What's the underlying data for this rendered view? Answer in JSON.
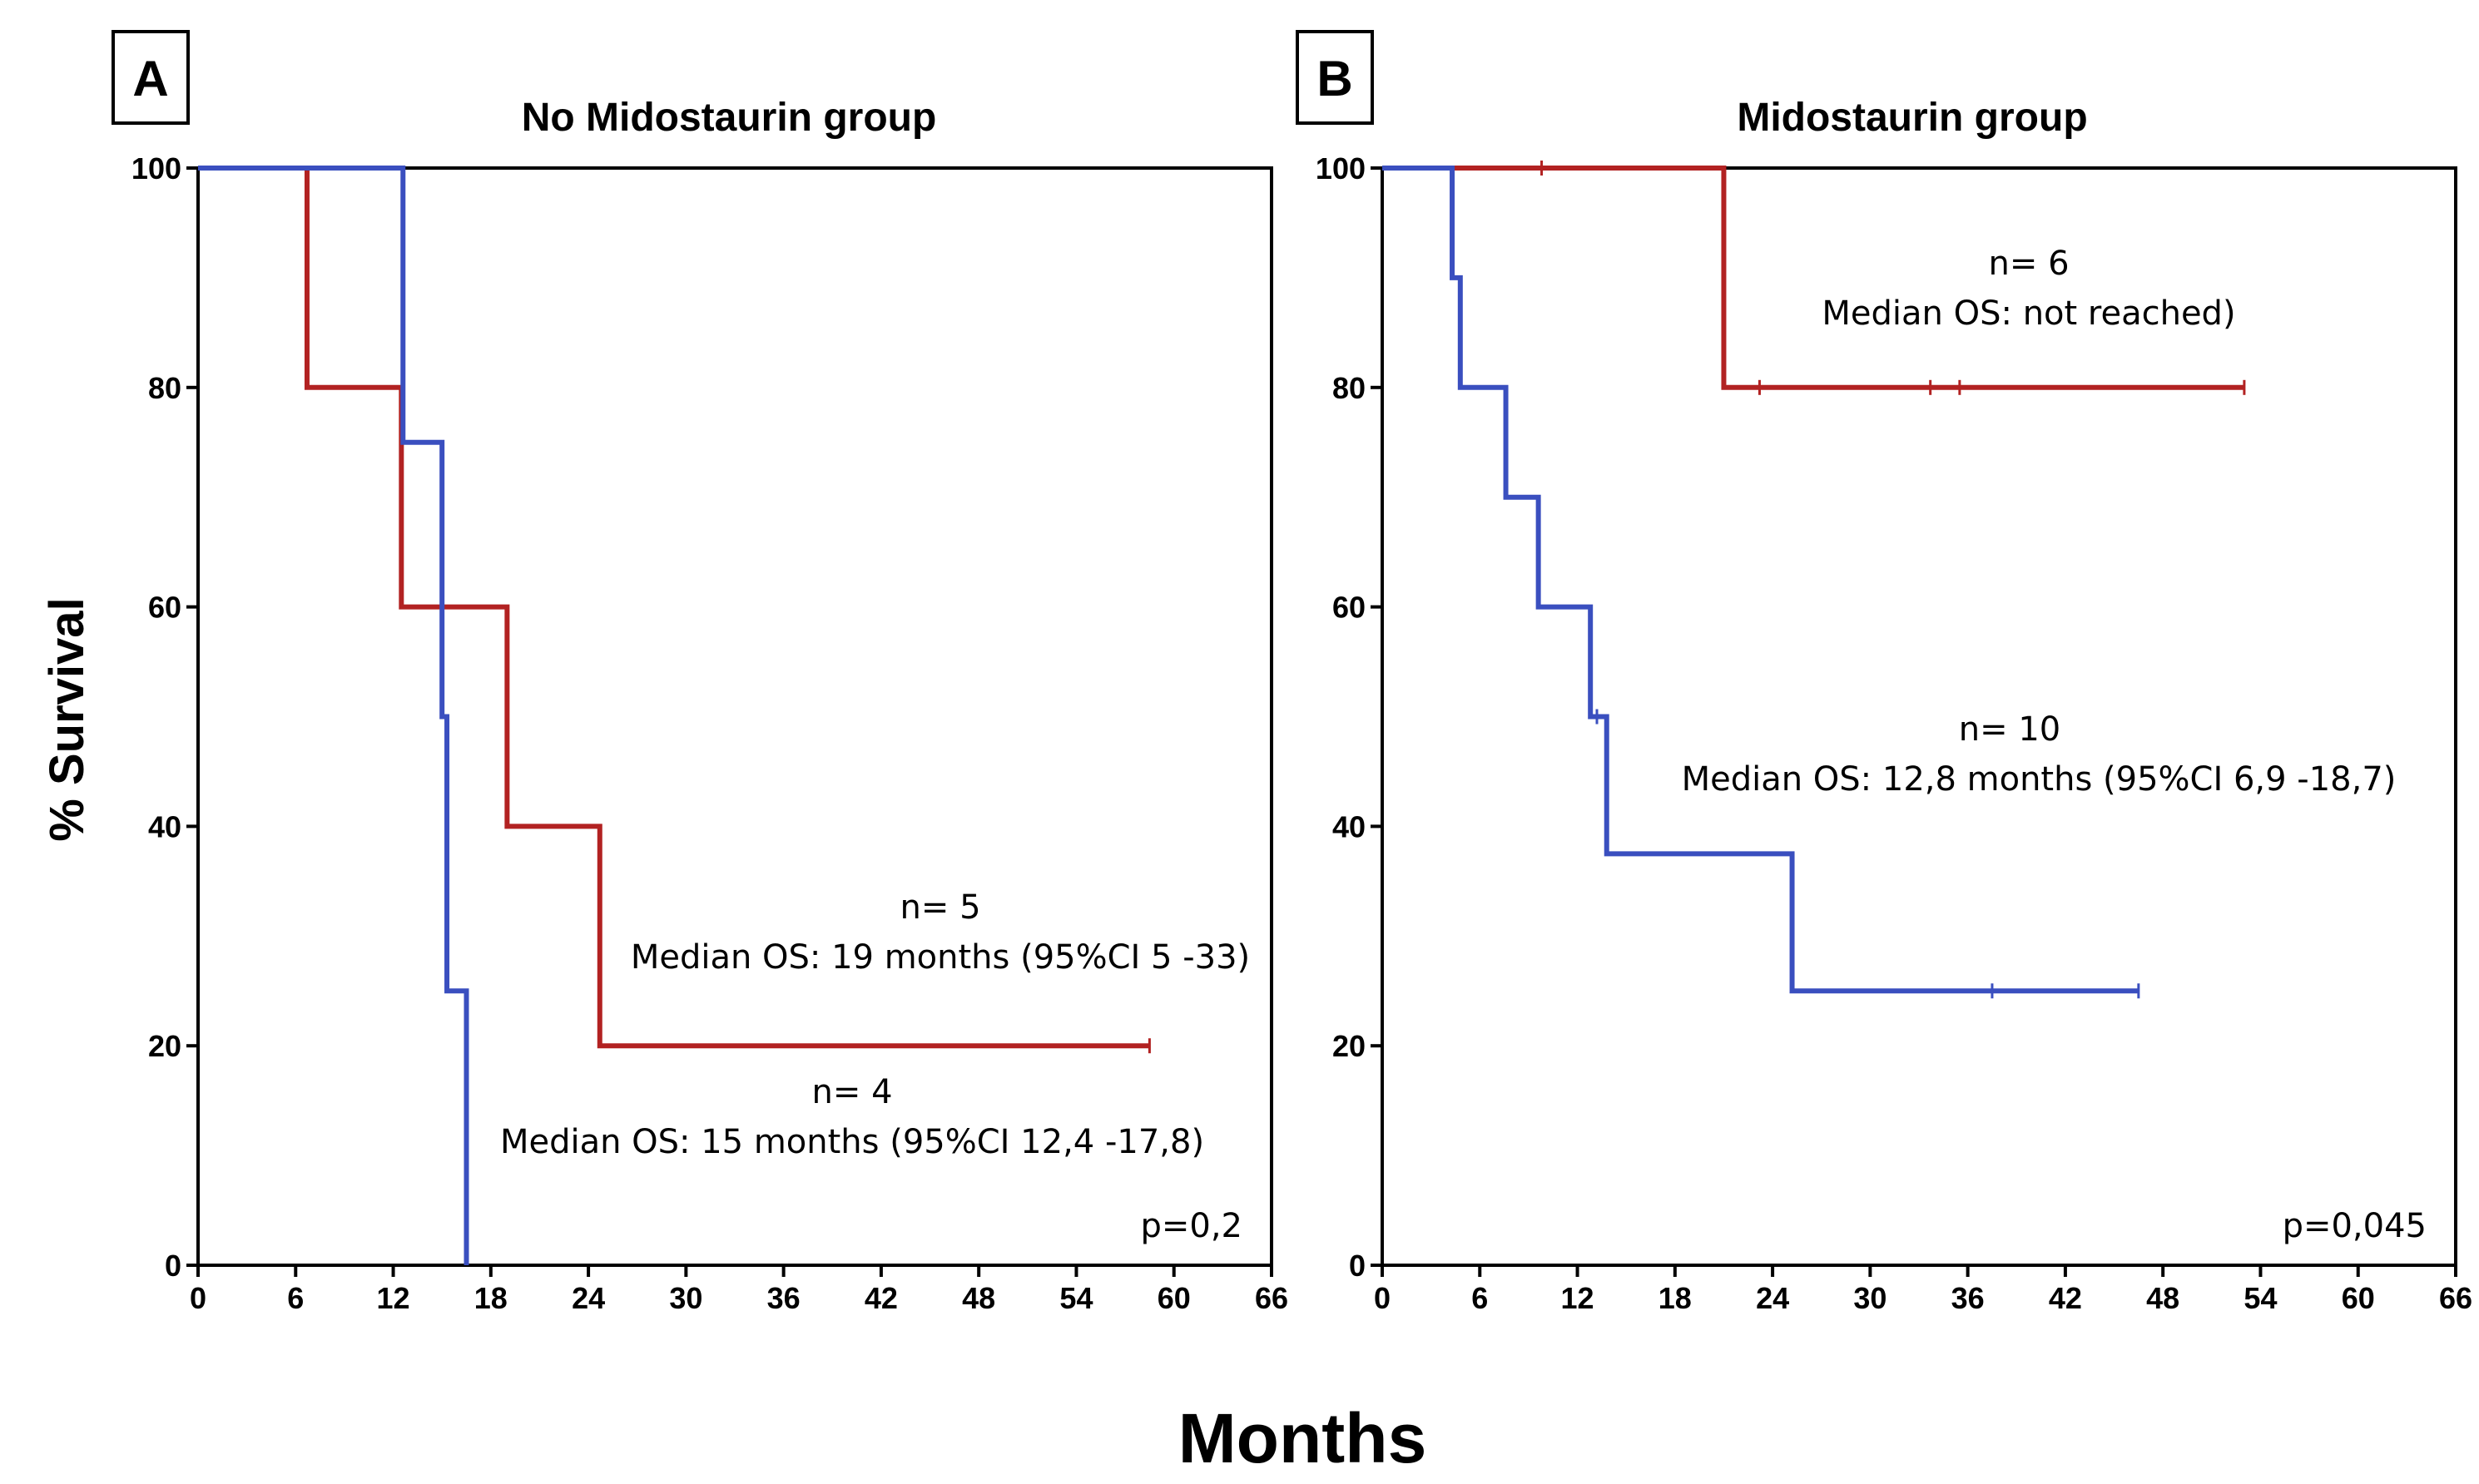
{
  "chart_data": [
    {
      "type": "line",
      "subtype": "kaplan-meier",
      "panel": "A",
      "title": "No Midostaurin group",
      "xlabel": "Months",
      "ylabel": "% Survival",
      "xlim": [
        0,
        66
      ],
      "ylim": [
        0,
        100
      ],
      "x_ticks": [
        "0",
        "6",
        "12",
        "18",
        "24",
        "30",
        "36",
        "42",
        "48",
        "54",
        "60",
        "66"
      ],
      "y_ticks": [
        "0",
        "20",
        "40",
        "60",
        "80",
        "100"
      ],
      "p_value": "p=0,2",
      "series": [
        {
          "name": "n= 5",
          "color": "#b22222",
          "annotation": [
            "n= 5",
            "Median OS: 19 months (95%CI 5 -33)"
          ],
          "steps": [
            [
              0,
              100
            ],
            [
              6.7,
              80
            ],
            [
              12.5,
              60
            ],
            [
              19,
              40
            ],
            [
              24.7,
              20
            ],
            [
              58.5,
              20
            ]
          ],
          "censored": [
            [
              58.5,
              20
            ]
          ]
        },
        {
          "name": "n= 4",
          "color": "#3a4fbf",
          "annotation": [
            "n= 4",
            "Median OS: 15 months (95%CI 12,4 -17,8)"
          ],
          "steps": [
            [
              0,
              100
            ],
            [
              12.6,
              75
            ],
            [
              15,
              50
            ],
            [
              15.3,
              25
            ],
            [
              16.5,
              0
            ]
          ],
          "censored": []
        }
      ]
    },
    {
      "type": "line",
      "subtype": "kaplan-meier",
      "panel": "B",
      "title": "Midostaurin group",
      "xlabel": "Months",
      "ylabel": "% Survival",
      "xlim": [
        0,
        66
      ],
      "ylim": [
        0,
        100
      ],
      "x_ticks": [
        "0",
        "6",
        "12",
        "18",
        "24",
        "30",
        "36",
        "42",
        "48",
        "54",
        "60",
        "66"
      ],
      "y_ticks": [
        "0",
        "20",
        "40",
        "60",
        "80",
        "100"
      ],
      "p_value": "p=0,045",
      "series": [
        {
          "name": "n= 6",
          "color": "#b22222",
          "annotation": [
            "n= 6",
            "Median OS: not reached)"
          ],
          "steps": [
            [
              0,
              100
            ],
            [
              21,
              80
            ],
            [
              53,
              80
            ]
          ],
          "censored": [
            [
              9.8,
              100
            ],
            [
              23.2,
              80
            ],
            [
              33.7,
              80
            ],
            [
              35.5,
              80
            ],
            [
              53,
              80
            ]
          ]
        },
        {
          "name": "n= 10",
          "color": "#3a4fbf",
          "annotation": [
            "n= 10",
            "Median OS: 12,8 months (95%CI 6,9 -18,7)"
          ],
          "steps": [
            [
              0,
              100
            ],
            [
              4.3,
              90
            ],
            [
              4.8,
              80
            ],
            [
              7.6,
              70
            ],
            [
              9.6,
              60
            ],
            [
              12.8,
              50
            ],
            [
              13.8,
              37.5
            ],
            [
              25.2,
              25
            ],
            [
              46.5,
              25
            ]
          ],
          "censored": [
            [
              13.2,
              50
            ],
            [
              37.5,
              25
            ],
            [
              46.5,
              25
            ]
          ]
        }
      ]
    }
  ],
  "shared": {
    "xlabel": "Months",
    "ylabel": "% Survival"
  }
}
